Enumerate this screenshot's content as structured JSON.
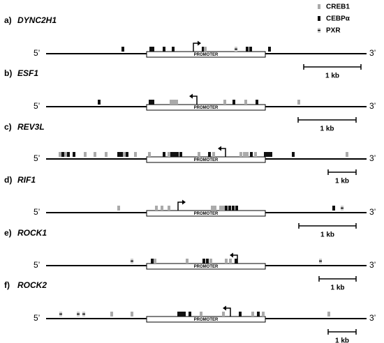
{
  "legend": [
    {
      "label": "CREB1"
    },
    {
      "label": "CEBPα"
    },
    {
      "label": "PXR"
    }
  ],
  "panels": [
    {
      "label": "a)",
      "gene": "DYNC2H1",
      "five": "5’",
      "three": "3’",
      "promoter": "PROMOTER",
      "scale": "1 kb"
    },
    {
      "label": "b)",
      "gene": "ESF1",
      "five": "5’",
      "three": "3’",
      "promoter": "PROMOTER",
      "scale": "1 kb"
    },
    {
      "label": "c)",
      "gene": "REV3L",
      "five": "5’",
      "three": "3’",
      "promoter": "PROMOTER",
      "scale": "1 kb"
    },
    {
      "label": "d)",
      "gene": "RIF1",
      "five": "5’",
      "three": "3’",
      "promoter": "PROMOTER",
      "scale": "1 kb"
    },
    {
      "label": "e)",
      "gene": "ROCK1",
      "five": "5’",
      "three": "3’",
      "promoter": "PROMOTER",
      "scale": "1 kb"
    },
    {
      "label": "f)",
      "gene": "ROCK2",
      "five": "5’",
      "three": "3’",
      "promoter": "PROMOTER",
      "scale": "1 kb"
    }
  ]
}
